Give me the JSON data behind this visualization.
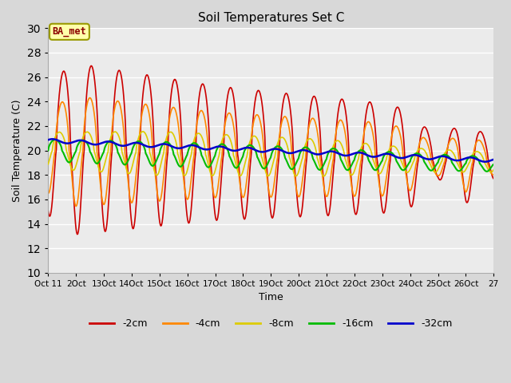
{
  "title": "Soil Temperatures Set C",
  "xlabel": "Time",
  "ylabel": "Soil Temperature (C)",
  "ylim": [
    10,
    30
  ],
  "xlim": [
    0,
    16
  ],
  "xtick_labels": [
    "Oct 11",
    "2Oct",
    "13Oct",
    "14Oct",
    "15Oct",
    "16Oct",
    "17Oct",
    "18Oct",
    "19Oct",
    "20Oct",
    "21Oct",
    "22Oct",
    "23Oct",
    "24Oct",
    "25Oct",
    "26Oct",
    "27"
  ],
  "yticks": [
    10,
    12,
    14,
    16,
    18,
    20,
    22,
    24,
    26,
    28,
    30
  ],
  "bg_color": "#d8d8d8",
  "plot_bg_color": "#ebebeb",
  "grid_color": "#ffffff",
  "series_colors": {
    "-2cm": "#cc0000",
    "-4cm": "#ff8800",
    "-8cm": "#ddcc00",
    "-16cm": "#00bb00",
    "-32cm": "#0000cc"
  },
  "annotation_text": "BA_met",
  "annotation_bg": "#ffffaa",
  "annotation_border": "#999900",
  "annotation_text_color": "#8b0000",
  "figsize": [
    6.4,
    4.8
  ],
  "dpi": 100
}
